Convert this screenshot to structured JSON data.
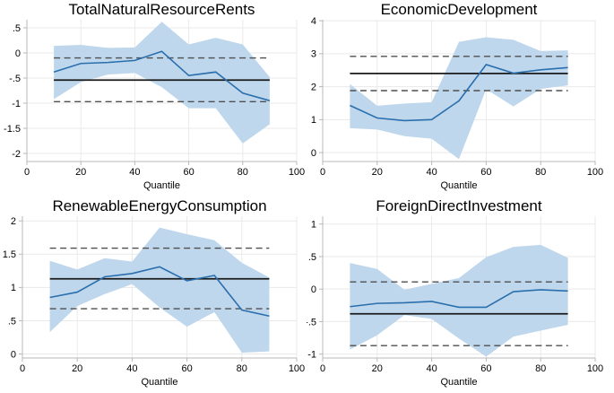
{
  "figure": {
    "kind": "quantile-regression-coefficient-plots",
    "panels": 4,
    "shared_xlabel": "Quantile"
  },
  "colors": {
    "band": "#bfd7ec",
    "line": "#2a6fad",
    "ols": "#1a1a1a",
    "dashed": "#4f4f4f",
    "grid": "#e9e9e9",
    "axis": "#b8b8b8",
    "text": "#000000",
    "background": "#ffffff"
  },
  "chart_data": [
    {
      "type": "line",
      "title": "TotalNaturalResourceRents",
      "xlabel": "Quantile",
      "legend": "none",
      "grid": true,
      "x": [
        10,
        20,
        30,
        40,
        50,
        60,
        70,
        80,
        90
      ],
      "line": [
        -0.38,
        -0.21,
        -0.19,
        -0.15,
        0.03,
        -0.45,
        -0.38,
        -0.8,
        -0.95
      ],
      "band": {
        "upper": [
          0.14,
          0.16,
          0.1,
          0.11,
          0.62,
          0.17,
          0.3,
          0.17,
          -0.48
        ],
        "lower": [
          -0.92,
          -0.58,
          -0.43,
          -0.4,
          -0.68,
          -1.1,
          -1.1,
          -1.8,
          -1.42
        ]
      },
      "ols": -0.54,
      "ols_ci": [
        -0.1,
        -0.97
      ],
      "ylim": [
        -2.16,
        0.66
      ],
      "xlim": [
        0,
        100
      ],
      "ytick_values": [
        0.5,
        0,
        -0.5,
        -1,
        -1.5,
        -2
      ],
      "ytick_labels": [
        ".5",
        "0",
        "-.5",
        "-1",
        "-1.5",
        "-2"
      ],
      "xticks": [
        0,
        20,
        40,
        60,
        80,
        100
      ],
      "layout": {
        "left": 30,
        "right": 331
      }
    },
    {
      "type": "line",
      "title": "EconomicDevelopment",
      "xlabel": "Quantile",
      "legend": "none",
      "grid": true,
      "x": [
        10,
        20,
        30,
        40,
        50,
        60,
        70,
        80,
        90
      ],
      "line": [
        1.43,
        1.05,
        0.97,
        1.0,
        1.57,
        2.67,
        2.41,
        2.51,
        2.58
      ],
      "band": {
        "upper": [
          2.08,
          1.42,
          1.49,
          1.53,
          3.36,
          3.5,
          3.42,
          3.08,
          3.1
        ],
        "lower": [
          0.74,
          0.7,
          0.5,
          0.42,
          -0.2,
          1.92,
          1.4,
          1.93,
          2.04
        ]
      },
      "ols": 2.4,
      "ols_ci": [
        2.92,
        1.88
      ],
      "ylim": [
        -0.27,
        4.03
      ],
      "xlim": [
        0,
        100
      ],
      "ytick_values": [
        4,
        3,
        2,
        1,
        0
      ],
      "ytick_labels": [
        "4",
        "3",
        "2",
        "1",
        "0"
      ],
      "xticks": [
        0,
        20,
        40,
        60,
        80,
        100
      ],
      "layout": {
        "left": 18,
        "right": 322
      }
    },
    {
      "type": "line",
      "title": "RenewableEnergyConsumption",
      "xlabel": "Quantile",
      "legend": "none",
      "grid": true,
      "x": [
        10,
        20,
        30,
        40,
        50,
        60,
        70,
        80,
        90
      ],
      "line": [
        0.85,
        0.93,
        1.16,
        1.21,
        1.31,
        1.1,
        1.18,
        0.66,
        0.57
      ],
      "band": {
        "upper": [
          1.4,
          1.27,
          1.44,
          1.39,
          1.9,
          1.8,
          1.71,
          1.37,
          1.15
        ],
        "lower": [
          0.33,
          0.72,
          0.9,
          1.05,
          0.7,
          0.41,
          0.63,
          0.02,
          0.04
        ]
      },
      "ols": 1.13,
      "ols_ci": [
        1.59,
        0.68
      ],
      "ylim": [
        -0.06,
        2.07
      ],
      "xlim": [
        0,
        100
      ],
      "ytick_values": [
        2,
        1.5,
        1,
        0.5,
        0
      ],
      "ytick_labels": [
        "2",
        "1.5",
        "1",
        ".5",
        "0"
      ],
      "xticks": [
        0,
        20,
        40,
        60,
        80,
        100
      ],
      "layout": {
        "left": 25,
        "right": 331
      }
    },
    {
      "type": "line",
      "title": "ForeignDirectInvestment",
      "xlabel": "Quantile",
      "legend": "none",
      "grid": true,
      "x": [
        10,
        20,
        30,
        40,
        50,
        60,
        70,
        80,
        90
      ],
      "line": [
        -0.27,
        -0.22,
        -0.21,
        -0.19,
        -0.28,
        -0.28,
        -0.04,
        -0.01,
        -0.03
      ],
      "band": {
        "upper": [
          0.4,
          0.31,
          -0.01,
          0.08,
          0.17,
          0.49,
          0.65,
          0.68,
          0.48
        ],
        "lower": [
          -0.93,
          -0.71,
          -0.4,
          -0.46,
          -0.76,
          -1.04,
          -0.73,
          -0.64,
          -0.55
        ]
      },
      "ols": -0.38,
      "ols_ci": [
        0.11,
        -0.87
      ],
      "ylim": [
        -1.06,
        1.12
      ],
      "xlim": [
        0,
        100
      ],
      "ytick_values": [
        1,
        0.5,
        0,
        -0.5,
        -1
      ],
      "ytick_labels": [
        "1",
        ".5",
        "0",
        "-.5",
        "-1"
      ],
      "xticks": [
        0,
        20,
        40,
        60,
        80,
        100
      ],
      "layout": {
        "left": 18,
        "right": 322
      }
    }
  ]
}
